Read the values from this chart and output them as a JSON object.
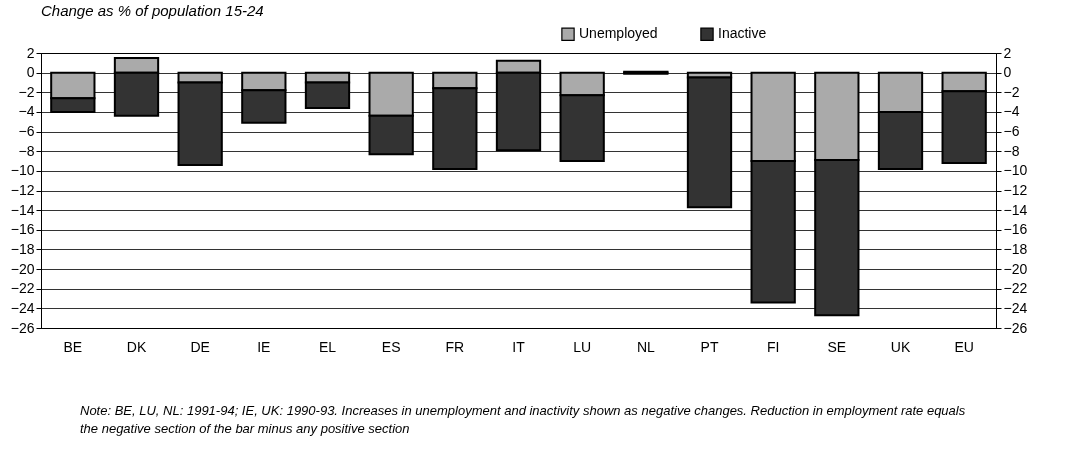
{
  "chart_data": {
    "type": "bar",
    "title": "Change as % of population 15-24",
    "categories": [
      "BE",
      "DK",
      "DE",
      "IE",
      "EL",
      "ES",
      "FR",
      "IT",
      "LU",
      "NL",
      "PT",
      "FI",
      "SE",
      "UK",
      "EU"
    ],
    "series": [
      {
        "name": "Unemployed",
        "color": "#aaaaaa",
        "values": [
          -2.6,
          1.5,
          -1.0,
          -1.8,
          -1.0,
          -4.4,
          -1.6,
          1.2,
          -2.3,
          0.1,
          -0.5,
          -9.0,
          -8.9,
          -4.0,
          -1.9
        ]
      },
      {
        "name": "Inactive",
        "color": "#333333",
        "values": [
          -1.4,
          -4.4,
          -8.4,
          -3.3,
          -2.6,
          -3.9,
          -8.2,
          -7.9,
          -6.7,
          -0.1,
          -13.2,
          -14.4,
          -15.8,
          -5.8,
          -7.3
        ]
      }
    ],
    "stacked": true,
    "ylim": [
      -26,
      2
    ],
    "yticks": [
      -26,
      -24,
      -22,
      -20,
      -18,
      -16,
      -14,
      -12,
      -10,
      -8,
      -6,
      -4,
      -2,
      0,
      2
    ],
    "y2lim": [
      -26,
      2
    ],
    "y2ticks": [
      -26,
      -24,
      -22,
      -20,
      -18,
      -16,
      -14,
      -12,
      -10,
      -8,
      -6,
      -4,
      -2,
      0,
      2
    ],
    "grid": "y",
    "legend": "top",
    "annotations": [
      "Note: BE, LU, NL: 1991-94; IE, UK: 1990-93. Increases in unemployment and inactivity shown as negative changes. Reduction in employment rate equals the negative section of the bar minus any positive section"
    ]
  }
}
